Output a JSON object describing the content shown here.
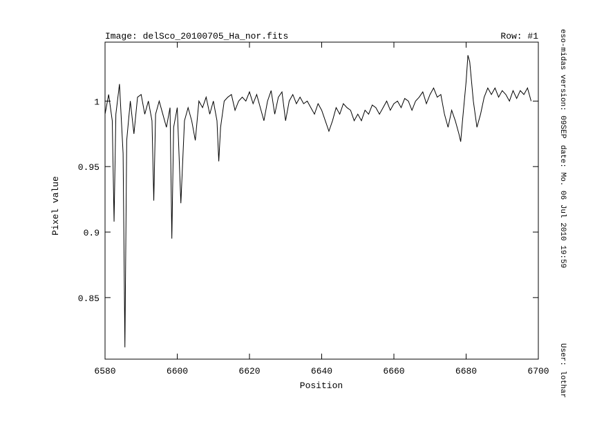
{
  "chart_data": {
    "type": "line",
    "image_label": "Image: delSco_20100705_Ha_nor.fits",
    "row_label": "Row: #1",
    "version_label": "eso-midas version: 09SEP",
    "date_label": "date: Mo. 06 Jul 2010 19:59",
    "user_label": "User: lothar",
    "x_label": "Position",
    "y_label": "Pixel value",
    "color": "#000000",
    "xlim": [
      6580,
      6700
    ],
    "ylim": [
      0.803,
      1.045
    ],
    "xticks": [
      6580,
      6600,
      6620,
      6640,
      6660,
      6680,
      6700
    ],
    "yticks": [
      0.85,
      0.9,
      0.95,
      1
    ],
    "x": [
      6580,
      6581,
      6582,
      6582.5,
      6583,
      6584,
      6585,
      6585.5,
      6586,
      6587,
      6588,
      6589,
      6590,
      6591,
      6592,
      6593,
      6593.5,
      6594,
      6595,
      6596,
      6597,
      6598,
      6598.5,
      6599,
      6600,
      6601,
      6602,
      6603,
      6604,
      6605,
      6606,
      6607,
      6608,
      6609,
      6610,
      6611,
      6611.5,
      6612,
      6613,
      6614,
      6615,
      6616,
      6617,
      6618,
      6619,
      6620,
      6621,
      6622,
      6623,
      6624,
      6625,
      6626,
      6627,
      6628,
      6629,
      6630,
      6631,
      6632,
      6633,
      6634,
      6635,
      6636,
      6637,
      6638,
      6639,
      6640,
      6641,
      6642,
      6643,
      6644,
      6645,
      6646,
      6647,
      6648,
      6649,
      6650,
      6651,
      6652,
      6653,
      6654,
      6655,
      6656,
      6657,
      6658,
      6659,
      6660,
      6661,
      6662,
      6663,
      6664,
      6665,
      6666,
      6667,
      6668,
      6669,
      6670,
      6671,
      6672,
      6673,
      6674,
      6675,
      6676,
      6677,
      6678,
      6678.5,
      6679,
      6680,
      6680.5,
      6681,
      6682,
      6683,
      6684,
      6685,
      6686,
      6687,
      6688,
      6689,
      6690,
      6691,
      6692,
      6693,
      6694,
      6695,
      6696,
      6697,
      6698
    ],
    "values": [
      0.99,
      1.005,
      0.985,
      0.908,
      0.99,
      1.013,
      0.96,
      0.812,
      0.97,
      1.0,
      0.975,
      1.003,
      1.005,
      0.99,
      1.0,
      0.985,
      0.924,
      0.99,
      1.0,
      0.99,
      0.98,
      0.995,
      0.895,
      0.98,
      0.995,
      0.922,
      0.985,
      0.995,
      0.985,
      0.97,
      1.0,
      0.995,
      1.003,
      0.99,
      1.0,
      0.985,
      0.954,
      0.98,
      1.0,
      1.003,
      1.005,
      0.993,
      1.0,
      1.003,
      1.0,
      1.007,
      0.998,
      1.005,
      0.995,
      0.985,
      1.0,
      1.008,
      0.99,
      1.003,
      1.007,
      0.985,
      1.0,
      1.005,
      0.998,
      1.003,
      0.998,
      1.0,
      0.995,
      0.99,
      0.998,
      0.993,
      0.985,
      0.977,
      0.985,
      0.995,
      0.99,
      0.998,
      0.995,
      0.993,
      0.985,
      0.99,
      0.985,
      0.993,
      0.99,
      0.997,
      0.995,
      0.99,
      0.995,
      1.0,
      0.993,
      0.998,
      1.0,
      0.995,
      1.002,
      1.0,
      0.993,
      1.0,
      1.003,
      1.007,
      0.998,
      1.005,
      1.01,
      1.003,
      1.005,
      0.99,
      0.98,
      0.993,
      0.985,
      0.975,
      0.969,
      0.985,
      1.015,
      1.035,
      1.03,
      1.0,
      0.98,
      0.99,
      1.003,
      1.01,
      1.005,
      1.01,
      1.003,
      1.008,
      1.005,
      1.0,
      1.008,
      1.002,
      1.008,
      1.005,
      1.01,
      1.0
    ]
  }
}
